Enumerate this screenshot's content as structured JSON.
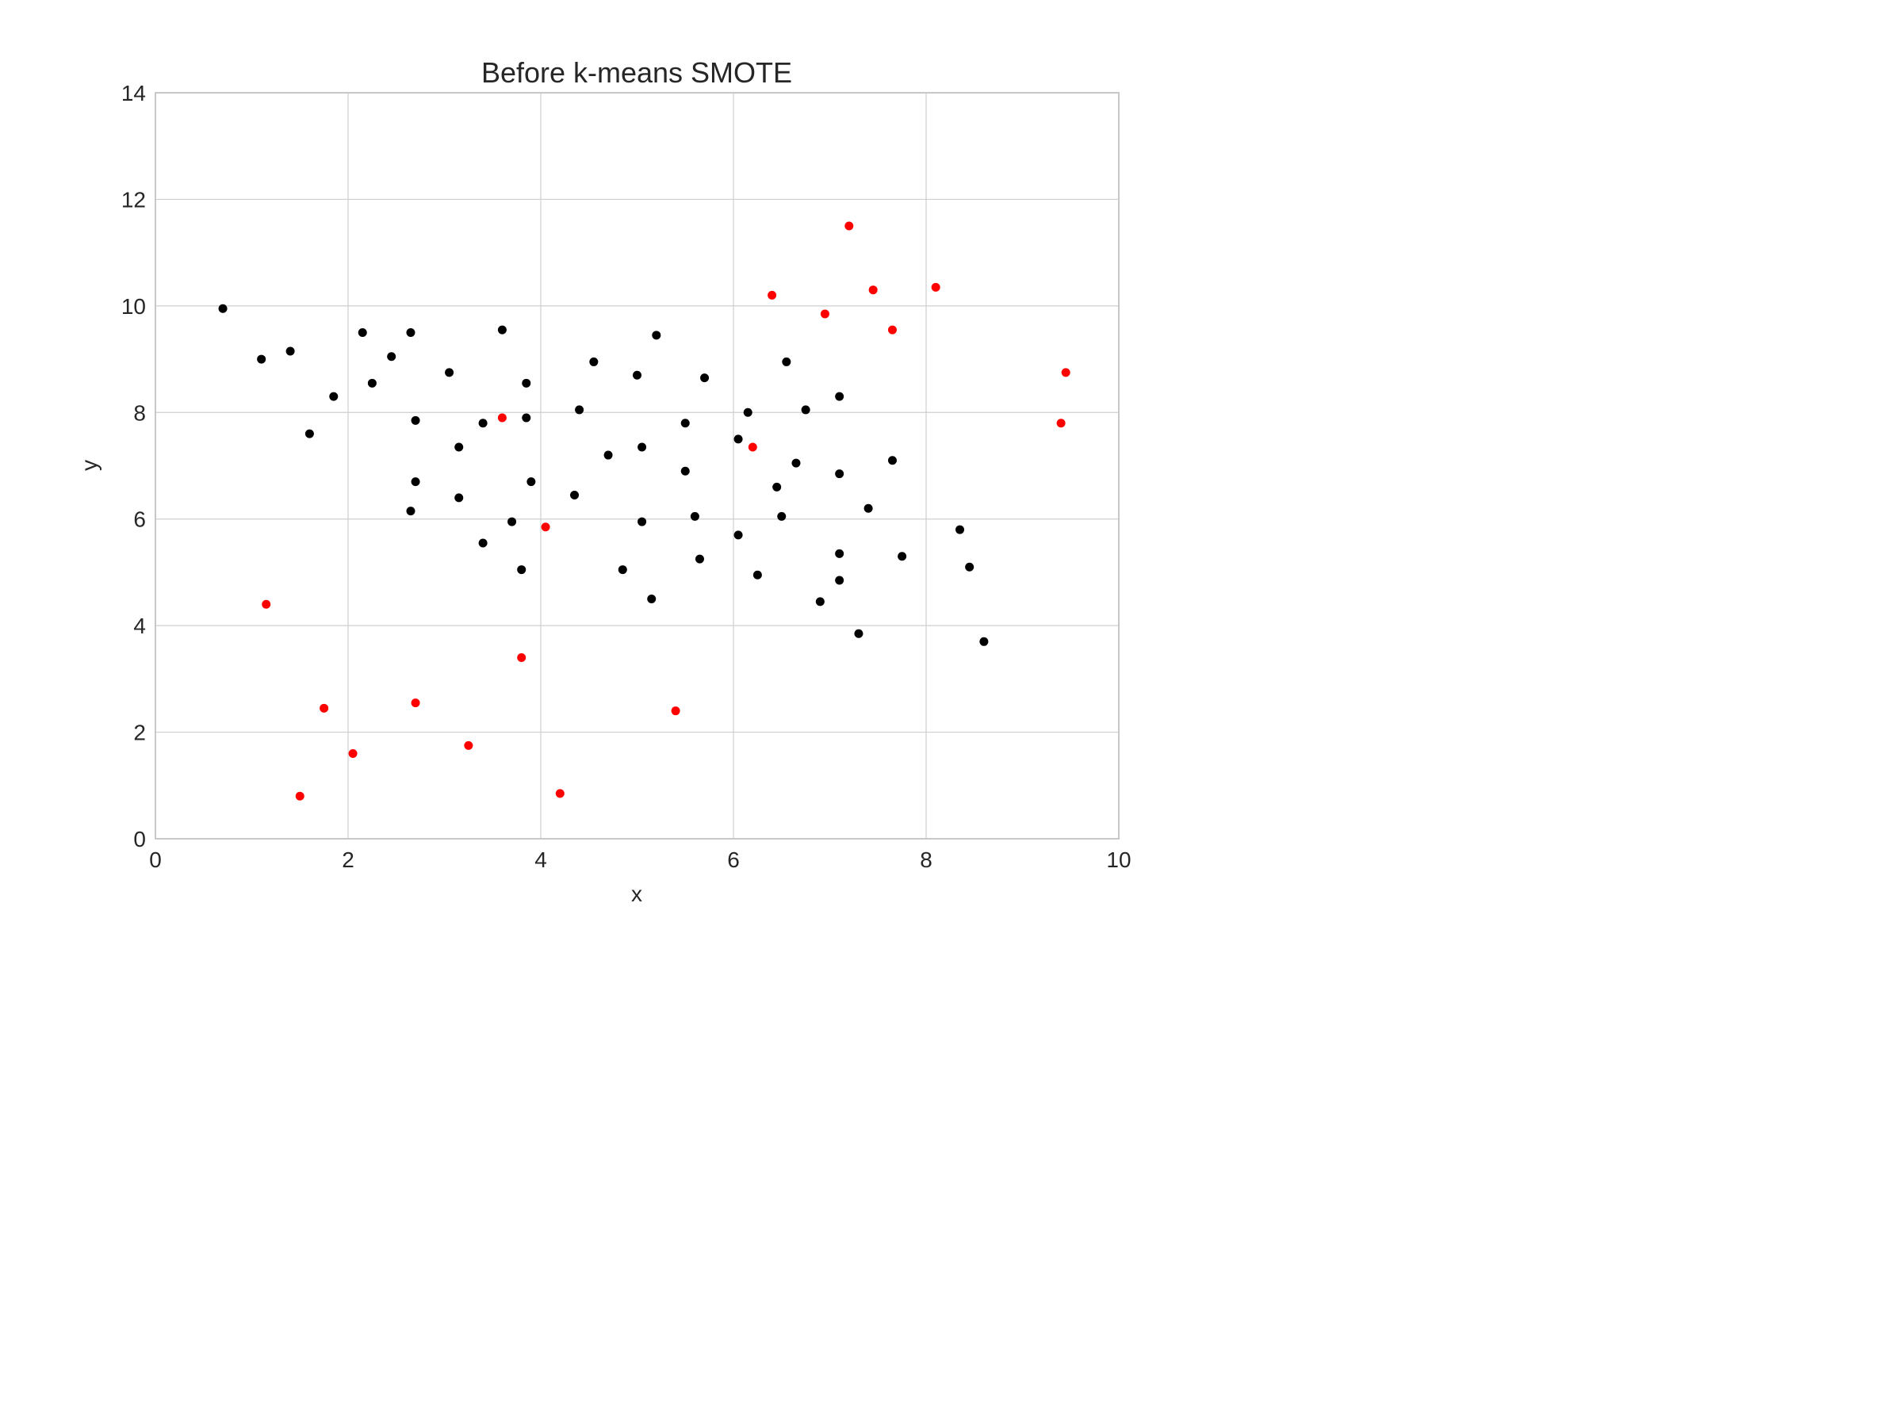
{
  "chart_data": {
    "type": "scatter",
    "title": "Before k-means SMOTE",
    "xlabel": "x",
    "ylabel": "y",
    "xlim": [
      0,
      10
    ],
    "ylim": [
      0,
      14
    ],
    "xticks": [
      0,
      2,
      4,
      6,
      8,
      10
    ],
    "yticks": [
      0,
      2,
      4,
      6,
      8,
      10,
      12,
      14
    ],
    "xtick_labels": [
      "0",
      "2",
      "4",
      "6",
      "8",
      "10"
    ],
    "ytick_labels": [
      "0",
      "2",
      "4",
      "6",
      "8",
      "10",
      "12",
      "14"
    ],
    "grid": true,
    "series": [
      {
        "color": "#000000",
        "points": [
          [
            0.7,
            9.95
          ],
          [
            1.1,
            9.0
          ],
          [
            1.4,
            9.15
          ],
          [
            1.6,
            7.6
          ],
          [
            1.85,
            8.3
          ],
          [
            2.15,
            9.5
          ],
          [
            2.25,
            8.55
          ],
          [
            2.45,
            9.05
          ],
          [
            2.65,
            9.5
          ],
          [
            2.7,
            7.85
          ],
          [
            2.7,
            6.7
          ],
          [
            2.65,
            6.15
          ],
          [
            3.05,
            8.75
          ],
          [
            3.15,
            7.35
          ],
          [
            3.15,
            6.4
          ],
          [
            3.4,
            7.8
          ],
          [
            3.4,
            5.55
          ],
          [
            3.6,
            9.55
          ],
          [
            3.85,
            8.55
          ],
          [
            3.85,
            7.9
          ],
          [
            3.9,
            6.7
          ],
          [
            3.7,
            5.95
          ],
          [
            3.8,
            5.05
          ],
          [
            4.35,
            6.45
          ],
          [
            4.4,
            8.05
          ],
          [
            4.55,
            8.95
          ],
          [
            4.7,
            7.2
          ],
          [
            4.85,
            5.05
          ],
          [
            5.0,
            8.7
          ],
          [
            5.05,
            7.35
          ],
          [
            5.05,
            5.95
          ],
          [
            5.15,
            4.5
          ],
          [
            5.2,
            9.45
          ],
          [
            5.5,
            7.8
          ],
          [
            5.5,
            6.9
          ],
          [
            5.6,
            6.05
          ],
          [
            5.65,
            5.25
          ],
          [
            5.7,
            8.65
          ],
          [
            6.05,
            7.5
          ],
          [
            6.05,
            5.7
          ],
          [
            6.15,
            8.0
          ],
          [
            6.25,
            4.95
          ],
          [
            6.45,
            6.6
          ],
          [
            6.5,
            6.05
          ],
          [
            6.55,
            8.95
          ],
          [
            6.65,
            7.05
          ],
          [
            6.75,
            8.05
          ],
          [
            6.9,
            4.45
          ],
          [
            7.1,
            8.3
          ],
          [
            7.1,
            6.85
          ],
          [
            7.1,
            5.35
          ],
          [
            7.1,
            4.85
          ],
          [
            7.3,
            3.85
          ],
          [
            7.4,
            6.2
          ],
          [
            7.65,
            7.1
          ],
          [
            7.75,
            5.3
          ],
          [
            8.35,
            5.8
          ],
          [
            8.45,
            5.1
          ],
          [
            8.6,
            3.7
          ]
        ]
      },
      {
        "color": "#ff0000",
        "points": [
          [
            1.15,
            4.4
          ],
          [
            1.5,
            0.8
          ],
          [
            1.75,
            2.45
          ],
          [
            2.05,
            1.6
          ],
          [
            2.7,
            2.55
          ],
          [
            3.25,
            1.75
          ],
          [
            3.6,
            7.9
          ],
          [
            3.8,
            3.4
          ],
          [
            4.05,
            5.85
          ],
          [
            4.2,
            0.85
          ],
          [
            5.4,
            2.4
          ],
          [
            6.2,
            7.35
          ],
          [
            6.4,
            10.2
          ],
          [
            6.95,
            9.85
          ],
          [
            7.2,
            11.5
          ],
          [
            7.45,
            10.3
          ],
          [
            7.65,
            9.55
          ],
          [
            8.1,
            10.35
          ],
          [
            9.4,
            7.8
          ],
          [
            9.45,
            8.75
          ]
        ]
      }
    ]
  }
}
